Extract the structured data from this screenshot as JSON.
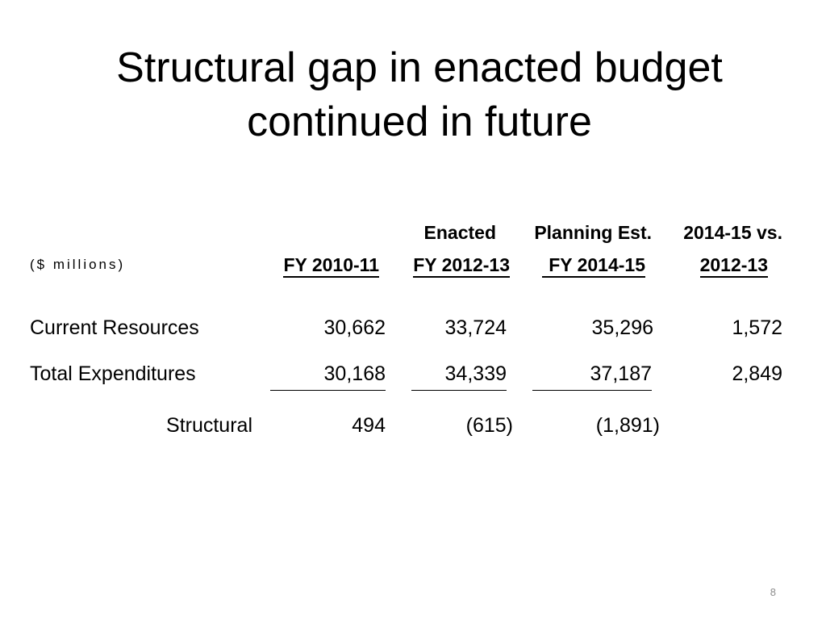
{
  "slide": {
    "title": {
      "line1": "Structural gap in enacted budget",
      "line2": "continued in future"
    },
    "page_number": "8"
  },
  "table": {
    "units_label": "($ millions)",
    "columns": [
      {
        "header": "FY 2010-11"
      },
      {
        "header_top": "Enacted",
        "header": "FY 2012-13"
      },
      {
        "header_top": "Planning Est.",
        "header": "FY 2014-15"
      },
      {
        "header_top": "2014-15 vs.",
        "header": "2012-13"
      }
    ],
    "rows": [
      {
        "label": "Current Resources",
        "values": [
          "30,662",
          "33,724",
          "35,296",
          "1,572"
        ]
      },
      {
        "label": "Total Expenditures",
        "values": [
          "30,168",
          "34,339",
          "37,187",
          "2,849"
        ]
      },
      {
        "label": "Structural",
        "values": [
          "494",
          "(615)",
          "(1,891)"
        ]
      }
    ]
  },
  "colors": {
    "background": "#ffffff",
    "text": "#000000",
    "page_number": "#8c8c8c"
  }
}
